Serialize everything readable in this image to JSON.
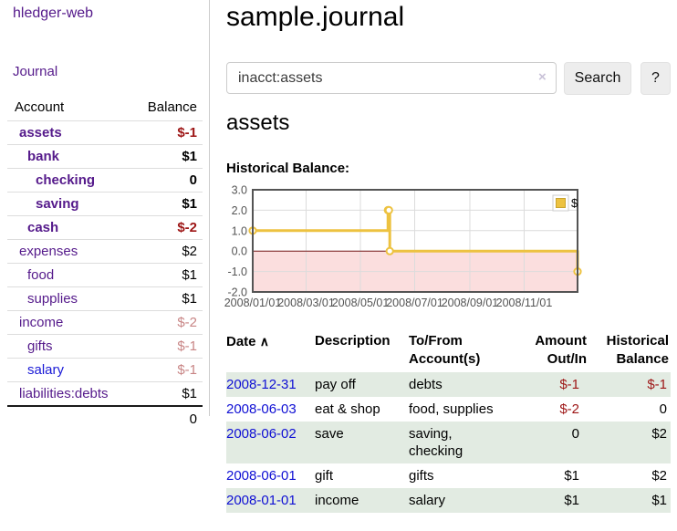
{
  "colors": {
    "link_purple": "#551a8b",
    "link_blue": "#1a1ad6",
    "negative_red": "#9d1515",
    "muted_negative": "#c88585",
    "row_stripe_green": "#e2ebe2",
    "chart_line_gold": "#edc240",
    "chart_negative_fill": "#fbdede",
    "chart_zero_line": "#7a1a1a"
  },
  "sidebar": {
    "brand": "hledger-web",
    "nav_journal": "Journal",
    "header": {
      "account": "Account",
      "balance": "Balance"
    },
    "accounts": [
      {
        "name": "assets",
        "balance": "$-1",
        "indent": 0,
        "bold": true,
        "negative": true
      },
      {
        "name": "bank",
        "balance": "$1",
        "indent": 1,
        "bold": true,
        "negative": false
      },
      {
        "name": "checking",
        "balance": "0",
        "indent": 2,
        "bold": true,
        "negative": false
      },
      {
        "name": "saving",
        "balance": "$1",
        "indent": 2,
        "bold": true,
        "negative": false
      },
      {
        "name": "cash",
        "balance": "$-2",
        "indent": 1,
        "bold": true,
        "negative": true
      },
      {
        "name": "expenses",
        "balance": "$2",
        "indent": 0,
        "bold": false,
        "negative": false
      },
      {
        "name": "food",
        "balance": "$1",
        "indent": 1,
        "bold": false,
        "negative": false
      },
      {
        "name": "supplies",
        "balance": "$1",
        "indent": 1,
        "bold": false,
        "negative": false
      },
      {
        "name": "income",
        "balance": "$-2",
        "indent": 0,
        "bold": false,
        "negative": true
      },
      {
        "name": "gifts",
        "balance": "$-1",
        "indent": 1,
        "bold": false,
        "negative": true
      },
      {
        "name": "salary",
        "balance": "$-1",
        "indent": 1,
        "bold": false,
        "negative": true,
        "unvisited": true
      },
      {
        "name": "liabilities:debts",
        "balance": "$1",
        "indent": 0,
        "bold": false,
        "negative": false
      }
    ],
    "total": "0"
  },
  "main": {
    "title": "sample.journal",
    "search": {
      "value": "inacct:assets",
      "clear_icon": "×",
      "search_button": "Search",
      "help_button": "?"
    },
    "account_heading": "assets"
  },
  "chart_data": {
    "type": "line",
    "title": "Historical Balance:",
    "steps": true,
    "xlim": [
      "2008-01-01",
      "2008-12-31"
    ],
    "ylim": [
      -2,
      3
    ],
    "y_ticks": [
      "3.0",
      "2.0",
      "1.0",
      "0.0",
      "-1.0",
      "-2.0"
    ],
    "x_ticks": [
      "2008/01/01",
      "2008/03/01",
      "2008/05/01",
      "2008/07/01",
      "2008/09/01",
      "2008/11/01"
    ],
    "grid": true,
    "legend": {
      "position": "top-right",
      "entries": [
        {
          "label": "$",
          "color": "#edc240"
        }
      ]
    },
    "series": [
      {
        "name": "$",
        "color": "#edc240",
        "points": [
          [
            "2008-01-01",
            1
          ],
          [
            "2008-06-01",
            2
          ],
          [
            "2008-06-02",
            2
          ],
          [
            "2008-06-03",
            0
          ],
          [
            "2008-12-31",
            -1
          ]
        ]
      }
    ]
  },
  "register": {
    "sort_icon": "∧",
    "columns": [
      "Date",
      "Description",
      "To/From\nAccount(s)",
      "Amount\nOut/In",
      "Historical\nBalance"
    ],
    "rows": [
      {
        "date": "2008-12-31",
        "description": "pay off",
        "tofrom": "debts",
        "amount": "$-1",
        "balance": "$-1"
      },
      {
        "date": "2008-06-03",
        "description": "eat & shop",
        "tofrom": "food, supplies",
        "amount": "$-2",
        "balance": "0"
      },
      {
        "date": "2008-06-02",
        "description": "save",
        "tofrom": "saving,\nchecking",
        "amount": "0",
        "balance": "$2"
      },
      {
        "date": "2008-06-01",
        "description": "gift",
        "tofrom": "gifts",
        "amount": "$1",
        "balance": "$2"
      },
      {
        "date": "2008-01-01",
        "description": "income",
        "tofrom": "salary",
        "amount": "$1",
        "balance": "$1"
      }
    ]
  }
}
